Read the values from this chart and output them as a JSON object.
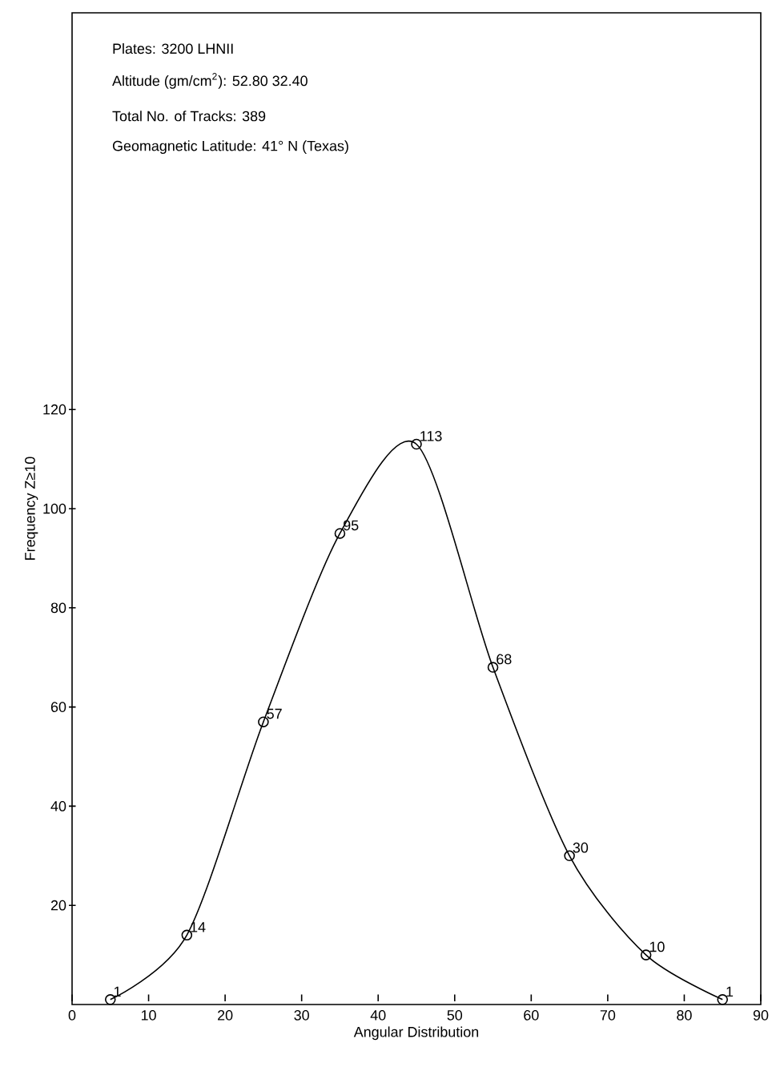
{
  "chart_data": {
    "type": "line",
    "xlabel": "Angular Distribution",
    "ylabel": "Frequency Z≥10",
    "annotations": [
      "Plates:            3200    LHNII",
      "Altitude (gm/cm$^{2}$): 52.80    32.40",
      "Total No. of Tracks: 389",
      "Geomagnetic Latitude: 41° N (Texas)"
    ],
    "x": [
      5,
      15,
      25,
      35,
      45,
      55,
      65,
      75,
      85
    ],
    "values": [
      1,
      14,
      57,
      95,
      113,
      68,
      30,
      10,
      1
    ],
    "color": "#000000",
    "xlim": [
      0,
      90
    ],
    "ylim": [
      0,
      200
    ],
    "xticks": [
      0,
      10,
      20,
      30,
      40,
      50,
      60,
      70,
      80,
      90
    ],
    "yticks": [
      20,
      40,
      60,
      80,
      100,
      120
    ],
    "data_labels": true,
    "marker": "circle",
    "line_style": "solid",
    "grid": false
  }
}
